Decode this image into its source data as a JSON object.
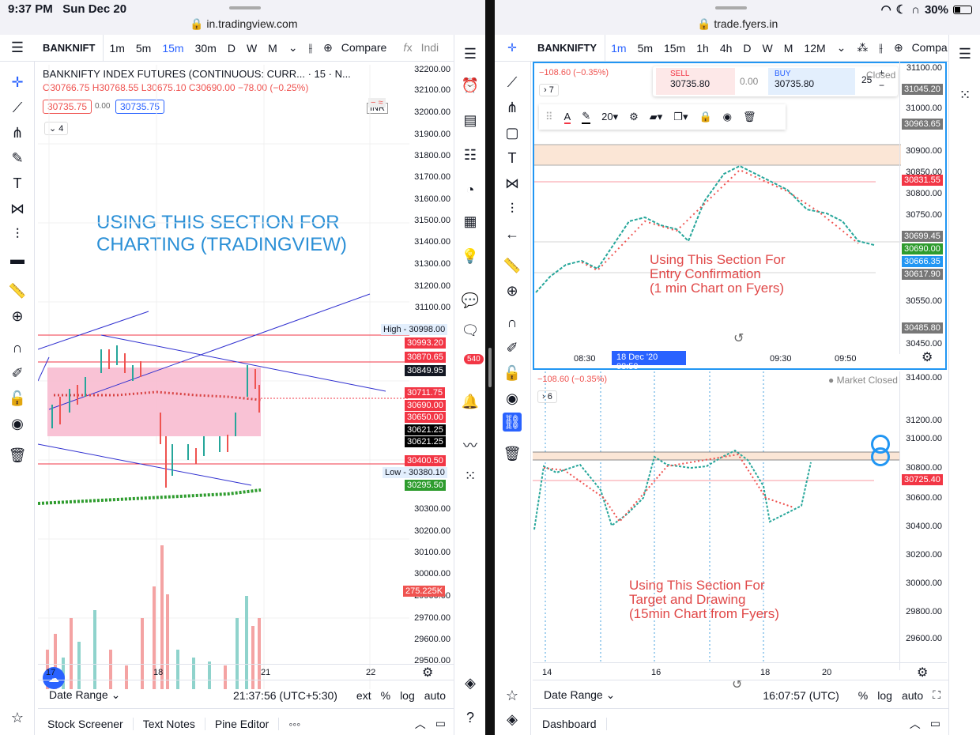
{
  "status": {
    "time": "9:37 PM",
    "date": "Sun Dec 20",
    "battery": "30%"
  },
  "left": {
    "url": "in.tradingview.com",
    "symbol": "BANKNIFT",
    "intervals": [
      "1m",
      "5m",
      "15m",
      "30m",
      "D",
      "W",
      "M"
    ],
    "active_interval": "15m",
    "compare": "Compare",
    "indicators": "Indi",
    "title": "BANKNIFTY INDEX FUTURES (CONTINUOUS: CURR... · 15 · N...",
    "currency": "INR",
    "ohlc": {
      "o": "30766.75",
      "h": "30768.55",
      "l": "30675.10",
      "c": "30690.00",
      "chg": "−78.00 (−0.25%)"
    },
    "sell_price": "30735.75",
    "spread": "0.00",
    "buy_price": "30735.75",
    "collapse_count": "4",
    "annotation": "USING THIS SECTION FOR\nCHARTING (TRADINGVIEW)",
    "price_ticks": [
      "32200.00",
      "32100.00",
      "32000.00",
      "31900.00",
      "31800.00",
      "31700.00",
      "31600.00",
      "31500.00",
      "31400.00",
      "31300.00",
      "31200.00",
      "31100.00",
      "31000.00",
      "30900.00",
      "30800.00",
      "30700.00",
      "30600.00",
      "30500.00",
      "30400.00",
      "30300.00",
      "30200.00",
      "30100.00",
      "30000.00",
      "29900.00",
      "29800.00",
      "29700.00",
      "29600.00",
      "29500.00"
    ],
    "tags": {
      "high_label": "High",
      "high": "30998.00",
      "t1": "30993.20",
      "t2": "30870.65",
      "t3": "30849.95",
      "t4": "30711.75",
      "t5": "30690.00",
      "t6": "30650.00",
      "t7": "30621.25",
      "t8": "30621.25",
      "t9": "30400.50",
      "low_label": "Low",
      "low": "30380.10",
      "t10": "30295.50",
      "vol": "275.225K"
    },
    "x_ticks": [
      "17",
      "18",
      "21",
      "22"
    ],
    "date_range": "Date Range",
    "clock": "21:37:56 (UTC+5:30)",
    "opts": [
      "ext",
      "%",
      "log",
      "auto"
    ],
    "footer": [
      "Stock Screener",
      "Text Notes",
      "Pine Editor",
      "◦◦◦"
    ],
    "badge": "540"
  },
  "right": {
    "url": "trade.fyers.in",
    "symbol": "BANKNIFTY",
    "intervals": [
      "1m",
      "5m",
      "15m",
      "1h",
      "4h",
      "D",
      "W",
      "M",
      "12M"
    ],
    "active_interval": "1m",
    "compare": "Compa",
    "change": "−108.60 (−0.35%)",
    "collapse_count_top": "7",
    "collapse_count_bottom": "6",
    "sell_label": "SELL",
    "sell_price": "30735.80",
    "spread": "0.00",
    "buy_label": "BUY",
    "buy_price": "30735.80",
    "qty": "25",
    "closed": "Closed",
    "market_closed": "Market Closed",
    "font_size": "20",
    "ann_top": "Using This Section For\nEntry Confirmation\n(1 min Chart on Fyers)",
    "ann_bottom": "Using This Section For\nTarget and Drawing\n(15min Chart from Fyers)",
    "top_ticks": [
      "31100.00",
      "31000.00",
      "30900.00",
      "30850.00",
      "30800.00",
      "30750.00",
      "30700.00",
      "30650.00",
      "30600.00",
      "30550.00",
      "30500.00",
      "30450.00"
    ],
    "top_tags": {
      "a": "31045.20",
      "b": "30963.65",
      "c": "30831.55",
      "d": "30699.45",
      "e": "30690.00",
      "f": "30666.35",
      "g": "30617.90",
      "h": "30485.80"
    },
    "top_x": [
      "08:30",
      "18 Dec '20   08:50",
      "09:30",
      "09:50"
    ],
    "bottom_ticks": [
      "31400.00",
      "31200.00",
      "31000.00",
      "30800.00",
      "30600.00",
      "30400.00",
      "30200.00",
      "30000.00",
      "29800.00",
      "29600.00"
    ],
    "bottom_tag": "30725.40",
    "bottom_x": [
      "14",
      "16",
      "18",
      "20"
    ],
    "date_range": "Date Range",
    "clock": "16:07:57 (UTC)",
    "opts": [
      "%",
      "log",
      "auto"
    ],
    "footer": "Dashboard"
  }
}
